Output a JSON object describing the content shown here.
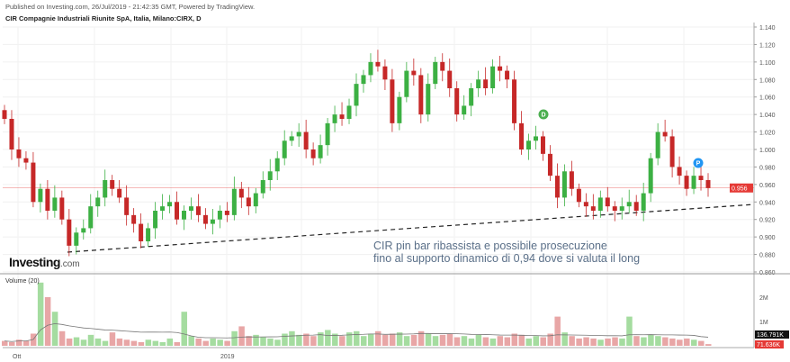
{
  "header": {
    "published": "Published on Investing.com, 26/Jul/2019 - 21:42:35 GMT, Powered by TradingView.",
    "symbol": "CIR Compagnie Industriali Riunite SpA, Italia, Milano:CIRX, D"
  },
  "logo": {
    "text": "Investing",
    "suffix": ".com"
  },
  "annotation": {
    "line1": "CIR pin bar ribassista e possibile prosecuzione",
    "line2": "fino al supporto dinamico di 0,94 dove si valuta il long"
  },
  "markers": [
    {
      "label": "D",
      "color": "#4caf50"
    },
    {
      "label": "P",
      "color": "#2196f3"
    }
  ],
  "colors": {
    "up": "#3cb043",
    "down": "#c62828",
    "vol_up": "#a5dca0",
    "vol_down": "#e8a6a6",
    "price_line": "#e53935"
  },
  "chart_data": {
    "type": "candlestick",
    "y_ticks": [
      "1.140",
      "1.120",
      "1.100",
      "1.080",
      "1.060",
      "1.040",
      "1.020",
      "1.000",
      "0.980",
      "0.960",
      "0.940",
      "0.920",
      "0.900",
      "0.880",
      "0.860"
    ],
    "ylim": [
      0.86,
      1.14
    ],
    "x_ticks": [
      "Ott",
      "2019"
    ],
    "last_price": "0.956",
    "close": [
      1.035,
      1.0,
      0.99,
      0.985,
      0.94,
      0.955,
      0.93,
      0.945,
      0.92,
      0.89,
      0.905,
      0.91,
      0.935,
      0.945,
      0.965,
      0.955,
      0.945,
      0.925,
      0.915,
      0.895,
      0.91,
      0.93,
      0.935,
      0.94,
      0.92,
      0.93,
      0.935,
      0.925,
      0.915,
      0.92,
      0.93,
      0.925,
      0.955,
      0.945,
      0.935,
      0.95,
      0.965,
      0.975,
      0.99,
      1.01,
      1.015,
      1.02,
      1.0,
      0.99,
      1.005,
      1.03,
      1.04,
      1.035,
      1.05,
      1.075,
      1.085,
      1.1,
      1.095,
      1.08,
      1.03,
      1.06,
      1.09,
      1.085,
      1.04,
      1.075,
      1.1,
      1.09,
      1.07,
      1.04,
      1.05,
      1.07,
      1.08,
      1.07,
      1.095,
      1.09,
      1.08,
      1.03,
      1.0,
      1.01,
      1.015,
      0.995,
      0.97,
      0.945,
      0.975,
      0.955,
      0.94,
      0.935,
      0.93,
      0.945,
      0.935,
      0.93,
      0.935,
      0.94,
      0.93,
      0.95,
      0.99,
      1.02,
      1.015,
      0.98,
      0.97,
      0.955,
      0.97,
      0.965,
      0.956
    ],
    "volume": {
      "title": "Volume (20)",
      "y_ticks": [
        "2M",
        "1M"
      ],
      "last_ma": "136.791K",
      "last_vol": "71.636K",
      "values_m": [
        0.2,
        0.15,
        0.25,
        0.2,
        0.5,
        2.6,
        2.0,
        1.4,
        0.6,
        0.3,
        0.35,
        0.25,
        0.45,
        0.3,
        0.2,
        0.55,
        0.3,
        0.25,
        0.2,
        0.15,
        0.25,
        0.2,
        0.15,
        0.3,
        0.15,
        1.4,
        0.4,
        0.3,
        0.2,
        0.3,
        0.25,
        0.2,
        0.6,
        0.8,
        0.4,
        0.45,
        0.35,
        0.3,
        0.25,
        0.5,
        0.6,
        0.45,
        0.5,
        0.4,
        0.55,
        0.65,
        0.5,
        0.4,
        0.55,
        0.6,
        0.4,
        0.5,
        0.6,
        0.45,
        0.5,
        0.55,
        0.4,
        0.45,
        0.6,
        0.5,
        0.4,
        0.45,
        0.5,
        0.35,
        0.4,
        0.3,
        0.45,
        0.35,
        0.3,
        0.4,
        0.35,
        0.5,
        0.45,
        0.3,
        0.4,
        0.35,
        0.5,
        1.2,
        0.55,
        0.4,
        0.3,
        0.35,
        0.3,
        0.25,
        0.3,
        0.35,
        0.3,
        1.2,
        0.4,
        0.35,
        0.45,
        0.4,
        0.35,
        0.3,
        0.25,
        0.3,
        0.25,
        0.2,
        0.07
      ]
    }
  }
}
